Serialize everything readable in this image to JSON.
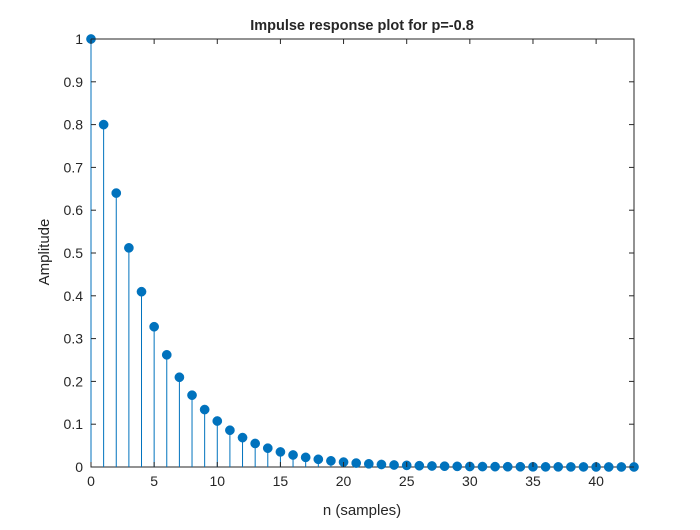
{
  "chart_data": {
    "type": "stem",
    "title": "Impulse response plot for p=-0.8",
    "xlabel": "n (samples)",
    "ylabel": "Amplitude",
    "xlim": [
      0,
      43
    ],
    "ylim": [
      0,
      1
    ],
    "xticks": [
      0,
      5,
      10,
      15,
      20,
      25,
      30,
      35,
      40
    ],
    "yticks": [
      0,
      0.1,
      0.2,
      0.3,
      0.4,
      0.5,
      0.6,
      0.7,
      0.8,
      0.9,
      1
    ],
    "grid": false,
    "box": true,
    "color": "#0072BD",
    "axis_color": "#262626",
    "series": [
      {
        "x": [
          0,
          1,
          2,
          3,
          4,
          5,
          6,
          7,
          8,
          9,
          10,
          11,
          12,
          13,
          14,
          15,
          16,
          17,
          18,
          19,
          20,
          21,
          22,
          23,
          24,
          25,
          26,
          27,
          28,
          29,
          30,
          31,
          32,
          33,
          34,
          35,
          36,
          37,
          38,
          39,
          40,
          41,
          42,
          43
        ],
        "values": [
          1,
          0.8,
          0.64,
          0.512,
          0.4096,
          0.3277,
          0.2621,
          0.2097,
          0.1678,
          0.1342,
          0.1074,
          0.0859,
          0.0687,
          0.055,
          0.044,
          0.0352,
          0.0281,
          0.0225,
          0.018,
          0.0144,
          0.0115,
          0.0092,
          0.0074,
          0.0059,
          0.0047,
          0.0038,
          0.003,
          0.0024,
          0.0019,
          0.0015,
          0.0012,
          0.001,
          0.0008,
          0.0006,
          0.0005,
          0.0004,
          0.0003,
          0.0003,
          0.0002,
          0.0002,
          0.0001,
          0.0001,
          0.0001,
          0.0001
        ]
      }
    ]
  }
}
